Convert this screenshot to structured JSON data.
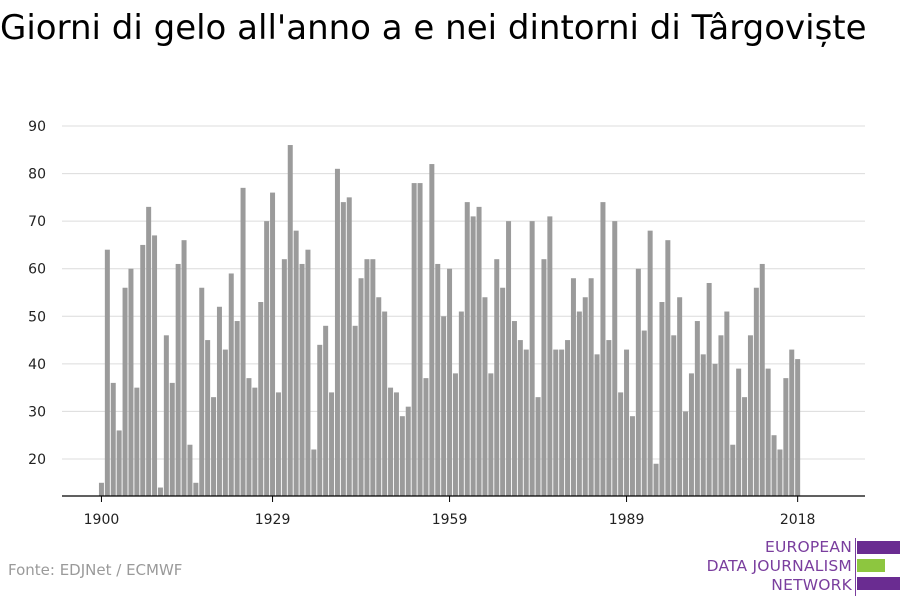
{
  "chart_data": {
    "type": "bar",
    "title": "Giorni di gelo all'anno a e nei dintorni di Târgoviște",
    "x": [
      1900,
      1901,
      1902,
      1903,
      1904,
      1905,
      1906,
      1907,
      1908,
      1909,
      1910,
      1911,
      1912,
      1913,
      1914,
      1915,
      1916,
      1917,
      1918,
      1919,
      1920,
      1921,
      1922,
      1923,
      1924,
      1925,
      1926,
      1927,
      1928,
      1929,
      1930,
      1931,
      1932,
      1933,
      1934,
      1935,
      1936,
      1937,
      1938,
      1939,
      1940,
      1941,
      1942,
      1943,
      1944,
      1945,
      1946,
      1947,
      1948,
      1949,
      1950,
      1951,
      1952,
      1953,
      1954,
      1955,
      1956,
      1957,
      1958,
      1959,
      1960,
      1961,
      1962,
      1963,
      1964,
      1965,
      1966,
      1967,
      1968,
      1969,
      1970,
      1971,
      1972,
      1973,
      1974,
      1975,
      1976,
      1977,
      1978,
      1979,
      1980,
      1981,
      1982,
      1983,
      1984,
      1985,
      1986,
      1987,
      1988,
      1989,
      1990,
      1991,
      1992,
      1993,
      1994,
      1995,
      1996,
      1997,
      1998,
      1999,
      2000,
      2001,
      2002,
      2003,
      2004,
      2005,
      2006,
      2007,
      2008,
      2009,
      2010,
      2011,
      2012,
      2013,
      2014,
      2015,
      2016,
      2017,
      2018
    ],
    "values": [
      15,
      64,
      36,
      26,
      56,
      60,
      35,
      65,
      73,
      67,
      14,
      46,
      36,
      61,
      66,
      23,
      15,
      56,
      45,
      33,
      52,
      43,
      59,
      49,
      77,
      37,
      35,
      53,
      70,
      76,
      34,
      62,
      86,
      68,
      61,
      64,
      22,
      44,
      48,
      34,
      81,
      74,
      75,
      48,
      58,
      62,
      62,
      54,
      51,
      35,
      34,
      29,
      31,
      78,
      78,
      37,
      82,
      61,
      50,
      60,
      38,
      51,
      74,
      71,
      73,
      54,
      38,
      62,
      56,
      70,
      49,
      45,
      43,
      70,
      33,
      62,
      71,
      43,
      43,
      45,
      58,
      51,
      54,
      58,
      42,
      74,
      45,
      70,
      34,
      43,
      29,
      60,
      47,
      68,
      19,
      53,
      66,
      46,
      54,
      30,
      38,
      49,
      42,
      57,
      40,
      46,
      51,
      23,
      39,
      33,
      46,
      56,
      61,
      39,
      25,
      22,
      37,
      43,
      41
    ],
    "xticks": [
      "1900",
      "1929",
      "1959",
      "1989",
      "2018"
    ],
    "yticks": [
      20,
      30,
      40,
      50,
      60,
      70,
      80,
      90
    ],
    "ylim": [
      12,
      92
    ],
    "xlabel": "",
    "ylabel": "",
    "grid": true,
    "bar_color": "#9b9b9b",
    "grid_color": "#dcdcdc"
  },
  "footer": {
    "source": "Fonte: EDJNet / ECMWF",
    "logo_lines": [
      "EUROPEAN",
      "DATA JOURNALISM",
      "NETWORK"
    ]
  },
  "colors": {
    "brand_purple": "#6a2c91",
    "brand_green": "#8dc63f"
  }
}
